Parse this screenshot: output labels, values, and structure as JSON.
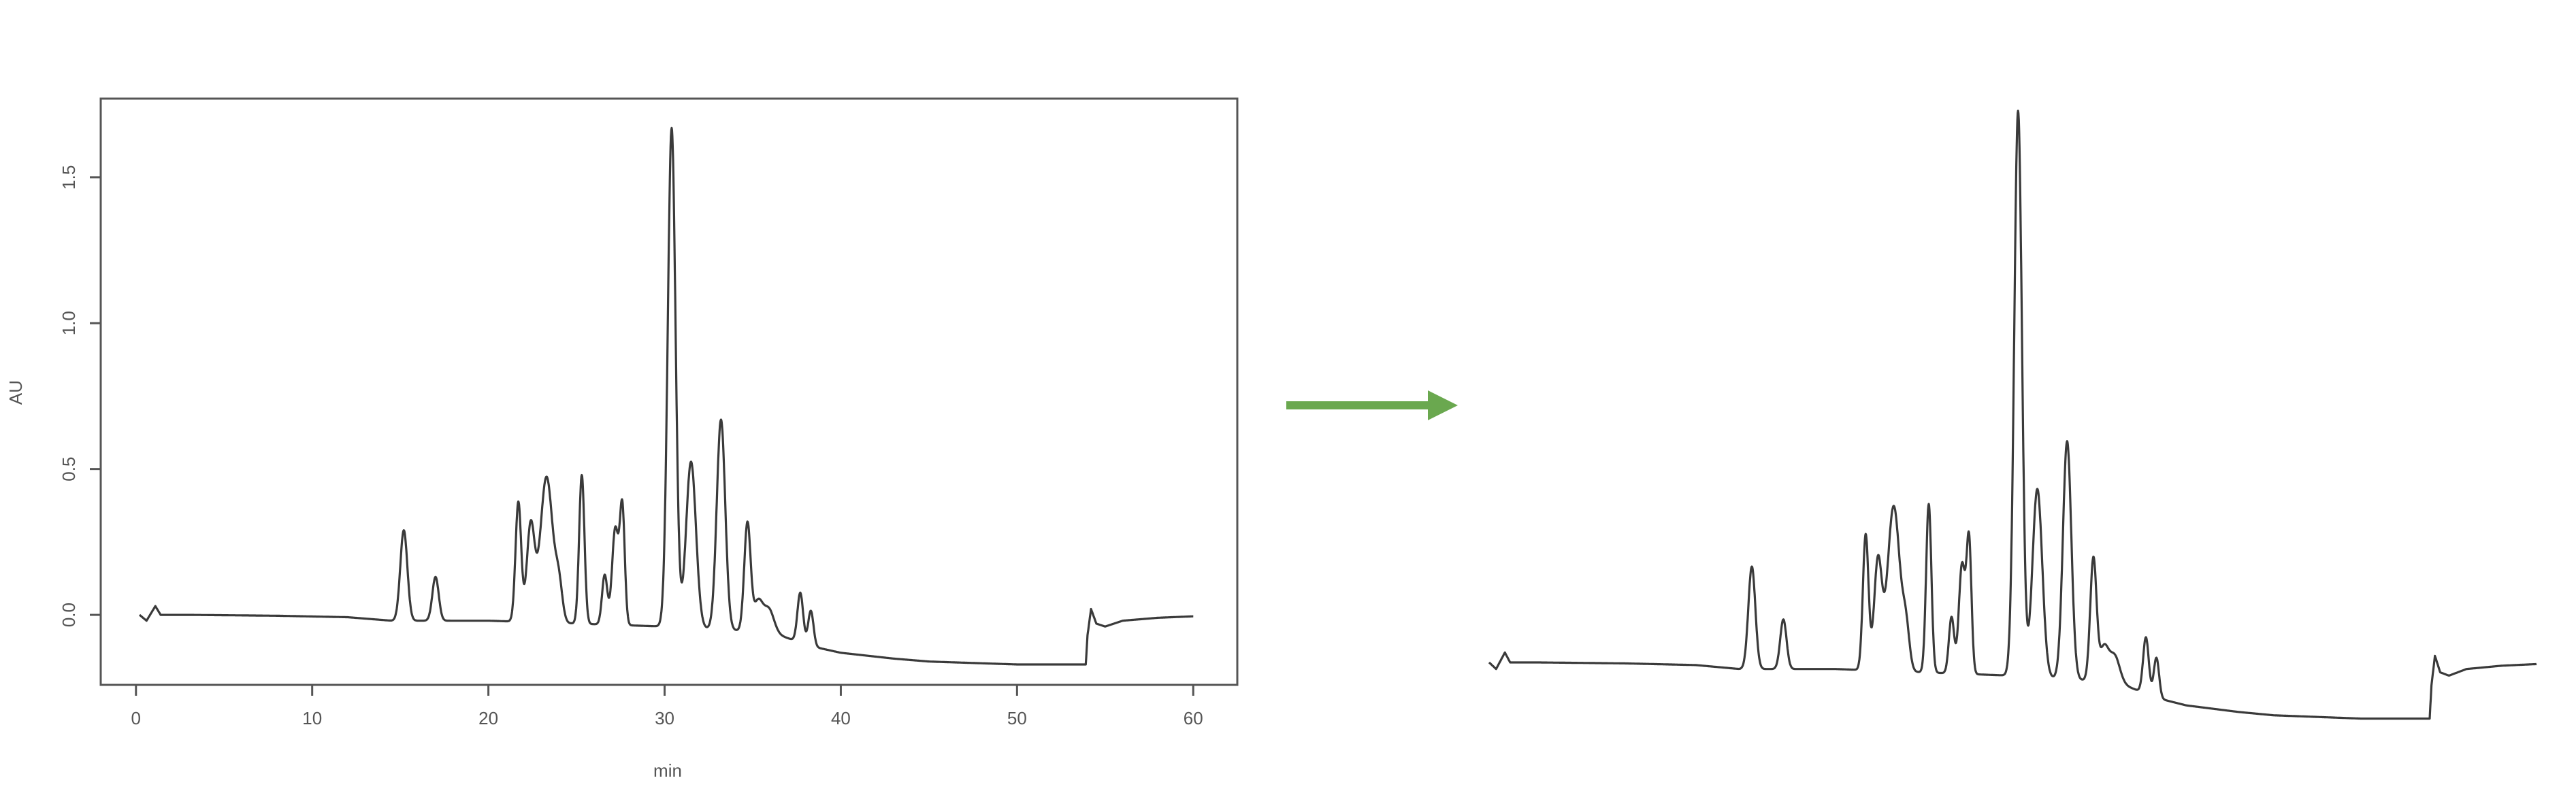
{
  "colors": {
    "trace": "#3a3a3a",
    "axis": "#555555",
    "arrow": "#6aa84f",
    "background": "#ffffff"
  },
  "chart_data": [
    {
      "type": "line",
      "xlabel": "min",
      "ylabel": "AU",
      "xlim": [
        -2,
        62.5
      ],
      "ylim": [
        -0.24,
        1.77
      ],
      "xticks": [
        0,
        10,
        20,
        30,
        40,
        50,
        60
      ],
      "yticks": [
        0.0,
        0.5,
        1.0,
        1.5
      ],
      "grid": false,
      "baseline_points": [
        [
          0.2,
          0.0
        ],
        [
          0.6,
          -0.02
        ],
        [
          0.9,
          0.01
        ],
        [
          1.1,
          0.03
        ],
        [
          1.4,
          0.0
        ],
        [
          3,
          0.0
        ],
        [
          8,
          -0.003
        ],
        [
          12,
          -0.008
        ],
        [
          14.5,
          -0.02
        ],
        [
          20,
          -0.02
        ],
        [
          30,
          -0.04
        ],
        [
          36,
          -0.06
        ],
        [
          38.5,
          -0.11
        ],
        [
          40,
          -0.13
        ],
        [
          43,
          -0.15
        ],
        [
          45,
          -0.16
        ],
        [
          50,
          -0.17
        ],
        [
          53.9,
          -0.17
        ],
        [
          54.0,
          -0.07
        ],
        [
          54.2,
          0.02
        ],
        [
          54.5,
          -0.03
        ],
        [
          55,
          -0.04
        ],
        [
          56,
          -0.02
        ],
        [
          58,
          -0.01
        ],
        [
          60,
          -0.005
        ]
      ],
      "peaks": [
        {
          "t": 15.2,
          "h": 0.31,
          "w": 0.2
        },
        {
          "t": 17.0,
          "h": 0.15,
          "w": 0.18
        },
        {
          "t": 21.7,
          "h": 0.41,
          "w": 0.16
        },
        {
          "t": 22.4,
          "h": 0.33,
          "w": 0.22
        },
        {
          "t": 23.3,
          "h": 0.5,
          "w": 0.35
        },
        {
          "t": 24.0,
          "h": 0.12,
          "w": 0.2
        },
        {
          "t": 25.3,
          "h": 0.51,
          "w": 0.15
        },
        {
          "t": 26.6,
          "h": 0.17,
          "w": 0.15
        },
        {
          "t": 27.2,
          "h": 0.33,
          "w": 0.18
        },
        {
          "t": 27.6,
          "h": 0.4,
          "w": 0.14
        },
        {
          "t": 30.4,
          "h": 1.71,
          "w": 0.22
        },
        {
          "t": 31.5,
          "h": 0.57,
          "w": 0.28
        },
        {
          "t": 33.2,
          "h": 0.72,
          "w": 0.24
        },
        {
          "t": 34.7,
          "h": 0.37,
          "w": 0.18
        },
        {
          "t": 35.3,
          "h": 0.1,
          "w": 0.25
        },
        {
          "t": 35.9,
          "h": 0.08,
          "w": 0.3
        },
        {
          "t": 37.7,
          "h": 0.17,
          "w": 0.16
        },
        {
          "t": 38.3,
          "h": 0.12,
          "w": 0.15
        }
      ]
    }
  ]
}
